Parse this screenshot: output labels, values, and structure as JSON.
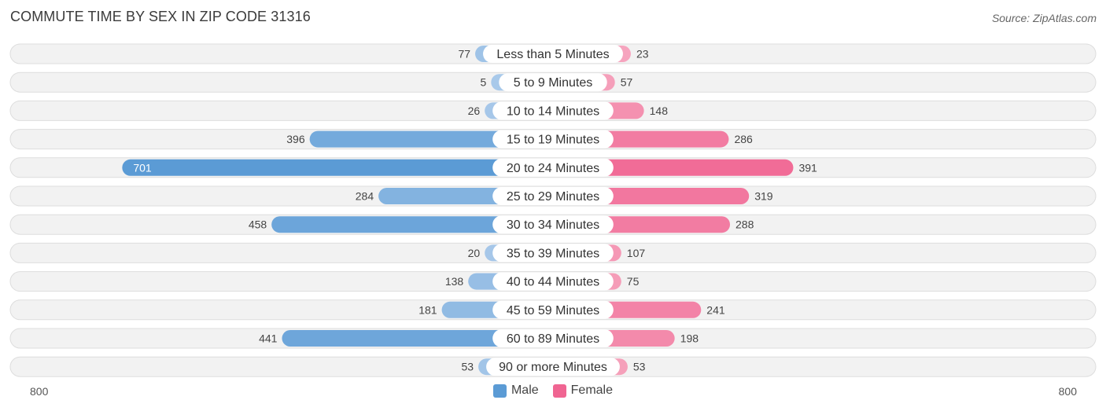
{
  "header": {
    "title": "COMMUTE TIME BY SEX IN ZIP CODE 31316",
    "source": "Source: ZipAtlas.com"
  },
  "axis": {
    "left_label": "800",
    "right_label": "800"
  },
  "legend": {
    "male_label": "Male",
    "female_label": "Female"
  },
  "colors": {
    "male": "#5b9bd5",
    "male_light": "#a9c9ea",
    "female": "#f06592",
    "female_light": "#f6a8c0",
    "row_bg": "#f2f2f2",
    "row_border": "#dddddd"
  },
  "chart_data": {
    "type": "bar",
    "orientation": "horizontal-diverging",
    "title": "COMMUTE TIME BY SEX IN ZIP CODE 31316",
    "xlim": [
      -800,
      800
    ],
    "categories": [
      "Less than 5 Minutes",
      "5 to 9 Minutes",
      "10 to 14 Minutes",
      "15 to 19 Minutes",
      "20 to 24 Minutes",
      "25 to 29 Minutes",
      "30 to 34 Minutes",
      "35 to 39 Minutes",
      "40 to 44 Minutes",
      "45 to 59 Minutes",
      "60 to 89 Minutes",
      "90 or more Minutes"
    ],
    "series": [
      {
        "name": "Male",
        "values": [
          77,
          5,
          26,
          396,
          701,
          284,
          458,
          20,
          138,
          181,
          441,
          53
        ]
      },
      {
        "name": "Female",
        "values": [
          23,
          57,
          148,
          286,
          391,
          319,
          288,
          107,
          75,
          241,
          198,
          53
        ]
      }
    ],
    "legend_position": "bottom-center"
  }
}
